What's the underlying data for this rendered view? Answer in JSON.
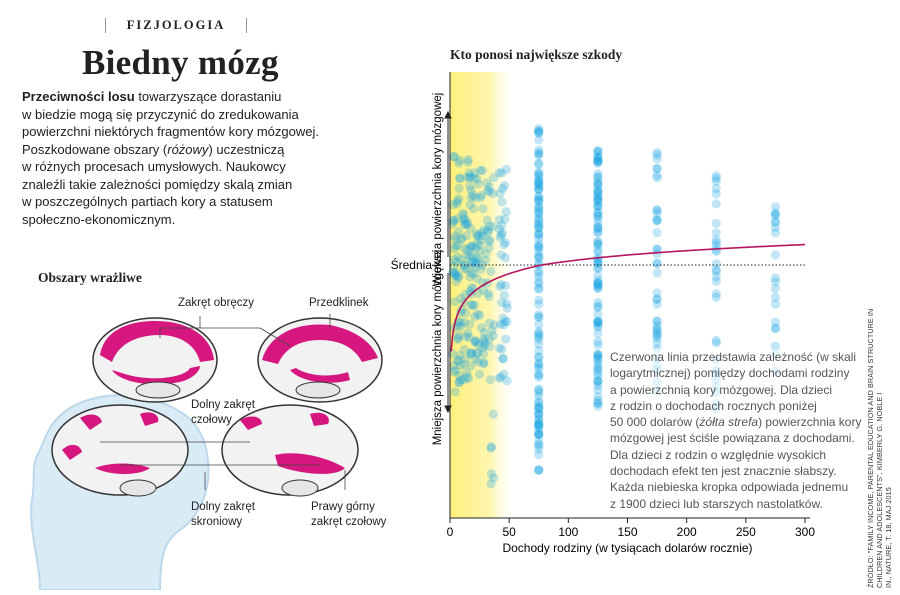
{
  "section_label": "FIZJOLOGIA",
  "headline": "Biedny mózg",
  "intro": {
    "lead": "Przeciwności losu",
    "line1": " towarzyszące dorastaniu",
    "line2": "w biedzie mogą się przyczynić do zredukowania",
    "line3": "powierzchni niektórych fragmentów kory mózgowej.",
    "line4a": "Poszkodowane obszary (",
    "line4b": "różowy",
    "line4c": ") uczestniczą",
    "line5": "w różnych procesach umysłowych. Naukowcy",
    "line6": "znaleźli takie zależności pomiędzy skalą zmian",
    "line7": "w poszczególnych partiach kory a statusem",
    "line8": "społeczno-ekonomicznym."
  },
  "brain": {
    "title": "Obszary wrażliwe",
    "label1": "Zakręt obręczy",
    "label2": "Przedklinek",
    "label3a": "Dolny zakręt",
    "label3b": "czołowy",
    "label4a": "Dolny zakręt",
    "label4b": "skroniowy",
    "label5a": "Prawy górny",
    "label5b": "zakręt czołowy",
    "highlight_color": "#d6177f"
  },
  "chart_data": {
    "type": "scatter",
    "title": "Kto ponosi największe szkody",
    "xlabel": "Dochody rodziny (w tysiącach dolarów rocznie)",
    "ylabel_top": "Większa powierzchnia kory mózgowej",
    "ylabel_bottom": "Mniejsza powierzchnia kory mózgowej",
    "mean_label": "Średnia",
    "xlim": [
      0,
      300
    ],
    "ylim": [
      -1,
      1
    ],
    "x_ticks": [
      0,
      50,
      100,
      150,
      200,
      250,
      300
    ],
    "yellow_zone_x": [
      0,
      50
    ],
    "dot_color": "#1ea7e1",
    "curve_color": "#b5155f",
    "curve": "logarytmiczna",
    "column_incomes": [
      5,
      10,
      15,
      20,
      25,
      30,
      35,
      45,
      75,
      125,
      175,
      225,
      275
    ],
    "column_counts": [
      40,
      34,
      34,
      30,
      30,
      24,
      22,
      40,
      120,
      100,
      40,
      30,
      20
    ],
    "column_spread": [
      [
        -0.58,
        0.64
      ],
      [
        -0.48,
        0.58
      ],
      [
        -0.5,
        0.6
      ],
      [
        -0.45,
        0.58
      ],
      [
        -0.45,
        0.55
      ],
      [
        -0.42,
        0.55
      ],
      [
        -0.9,
        0.52
      ],
      [
        -0.48,
        0.55
      ],
      [
        -0.85,
        0.75
      ],
      [
        -0.6,
        0.65
      ],
      [
        -0.55,
        0.62
      ],
      [
        -0.6,
        0.52
      ],
      [
        -0.45,
        0.38
      ]
    ],
    "annotation": {
      "line1": "Czerwona linia przedstawia zależność (w skali",
      "line2": "logarytmicznej) pomiędzy dochodami rodziny",
      "line3": "a powierzchnią kory mózgowej. Dla dzieci",
      "line4": "z rodzin o dochodach rocznych poniżej",
      "line5a": "50 000 dolarów (",
      "line5b": "żółta strefa",
      "line5c": ") powierzchnia kory",
      "line6": "mózgowej jest ściśle powiązana z dochodami.",
      "line7": "Dla dzieci z rodzin o względnie wysokich",
      "line8": "dochodach efekt ten jest znacznie słabszy.",
      "line9": "Każda niebieska kropka odpowiada jednemu",
      "line10": "z 1900 dzieci lub starszych nastolatków."
    }
  },
  "source": {
    "line1": "ŹRÓDŁO: \"FAMILY INCOME, PARENTAL EDUCATION AND BRAIN STRUCTURE IN CHILDREN AND ADOLESCENTS\", KIMBERLY G. NOBLE I",
    "line2": "IN., NATURE, T. 18, MAJ 2015"
  }
}
